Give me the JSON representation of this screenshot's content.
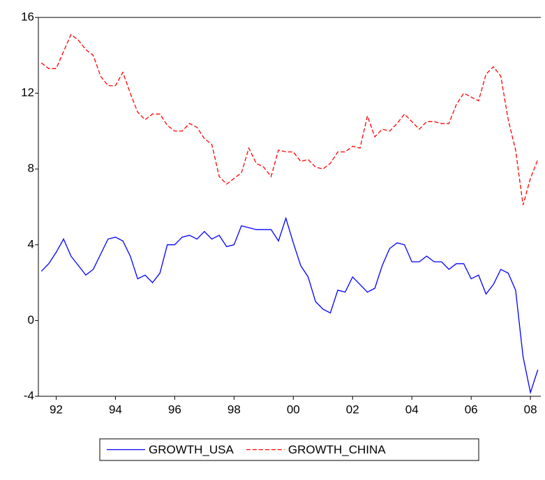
{
  "chart_data": {
    "type": "line",
    "x": [
      1992,
      1992.25,
      1992.5,
      1992.75,
      1993,
      1993.25,
      1993.5,
      1993.75,
      1994,
      1994.25,
      1994.5,
      1994.75,
      1995,
      1995.25,
      1995.5,
      1995.75,
      1996,
      1996.25,
      1996.5,
      1996.75,
      1997,
      1997.25,
      1997.5,
      1997.75,
      1998,
      1998.25,
      1998.5,
      1998.75,
      1999,
      1999.25,
      1999.5,
      1999.75,
      2000,
      2000.25,
      2000.5,
      2000.75,
      2001,
      2001.25,
      2001.5,
      2001.75,
      2002,
      2002.25,
      2002.5,
      2002.75,
      2003,
      2003.25,
      2003.5,
      2003.75,
      2004,
      2004.25,
      2004.5,
      2004.75,
      2005,
      2005.25,
      2005.5,
      2005.75,
      2006,
      2006.25,
      2006.5,
      2006.75,
      2007,
      2007.25,
      2007.5,
      2007.75,
      2008,
      2008.25,
      2008.5,
      2008.75
    ],
    "series": [
      {
        "name": "GROWTH_USA",
        "color": "#0000ff",
        "dash": "none",
        "values": [
          2.6,
          3.0,
          3.6,
          4.3,
          3.4,
          2.9,
          2.4,
          2.7,
          3.5,
          4.3,
          4.4,
          4.2,
          3.4,
          2.2,
          2.4,
          2.0,
          2.5,
          4.0,
          4.0,
          4.4,
          4.5,
          4.3,
          4.7,
          4.3,
          4.5,
          3.9,
          4.0,
          5.0,
          4.9,
          4.8,
          4.8,
          4.8,
          4.2,
          5.4,
          4.1,
          2.9,
          2.3,
          1.0,
          0.6,
          0.4,
          1.6,
          1.5,
          2.3,
          1.9,
          1.5,
          1.7,
          2.9,
          3.8,
          4.1,
          4.0,
          3.1,
          3.1,
          3.4,
          3.1,
          3.1,
          2.7,
          3.0,
          3.0,
          2.2,
          2.4,
          1.4,
          1.9,
          2.7,
          2.5,
          1.6,
          -1.9,
          -3.8,
          -2.6
        ]
      },
      {
        "name": "GROWTH_CHINA",
        "color": "#ff0000",
        "dash": "6 3",
        "values": [
          13.6,
          13.3,
          13.3,
          14.2,
          15.1,
          14.8,
          14.3,
          14.0,
          12.9,
          12.4,
          12.4,
          13.1,
          12.0,
          11.0,
          10.6,
          10.9,
          10.9,
          10.3,
          10.0,
          10.0,
          10.4,
          10.2,
          9.6,
          9.3,
          7.6,
          7.2,
          7.5,
          7.8,
          9.1,
          8.3,
          8.1,
          7.6,
          9.0,
          8.9,
          8.9,
          8.4,
          8.5,
          8.1,
          8.0,
          8.3,
          8.9,
          8.9,
          9.2,
          9.1,
          10.8,
          9.7,
          10.1,
          10.0,
          10.4,
          10.9,
          10.5,
          10.1,
          10.5,
          10.5,
          10.4,
          10.4,
          11.4,
          12.0,
          11.8,
          11.6,
          13.0,
          13.4,
          12.9,
          10.6,
          9.0,
          6.1,
          7.5,
          8.5
        ]
      }
    ],
    "xlim": [
      1991.9,
      2008.85
    ],
    "xticks": [
      {
        "value": 1992.5,
        "label": "92"
      },
      {
        "value": 1994.5,
        "label": "94"
      },
      {
        "value": 1996.5,
        "label": "96"
      },
      {
        "value": 1998.5,
        "label": "98"
      },
      {
        "value": 2000.5,
        "label": "00"
      },
      {
        "value": 2002.5,
        "label": "02"
      },
      {
        "value": 2004.5,
        "label": "04"
      },
      {
        "value": 2006.5,
        "label": "06"
      },
      {
        "value": 2008.5,
        "label": "08"
      }
    ],
    "ylim": [
      -4,
      16
    ],
    "yticks": [
      -4,
      0,
      4,
      8,
      12,
      16
    ],
    "legend": "bottom"
  }
}
